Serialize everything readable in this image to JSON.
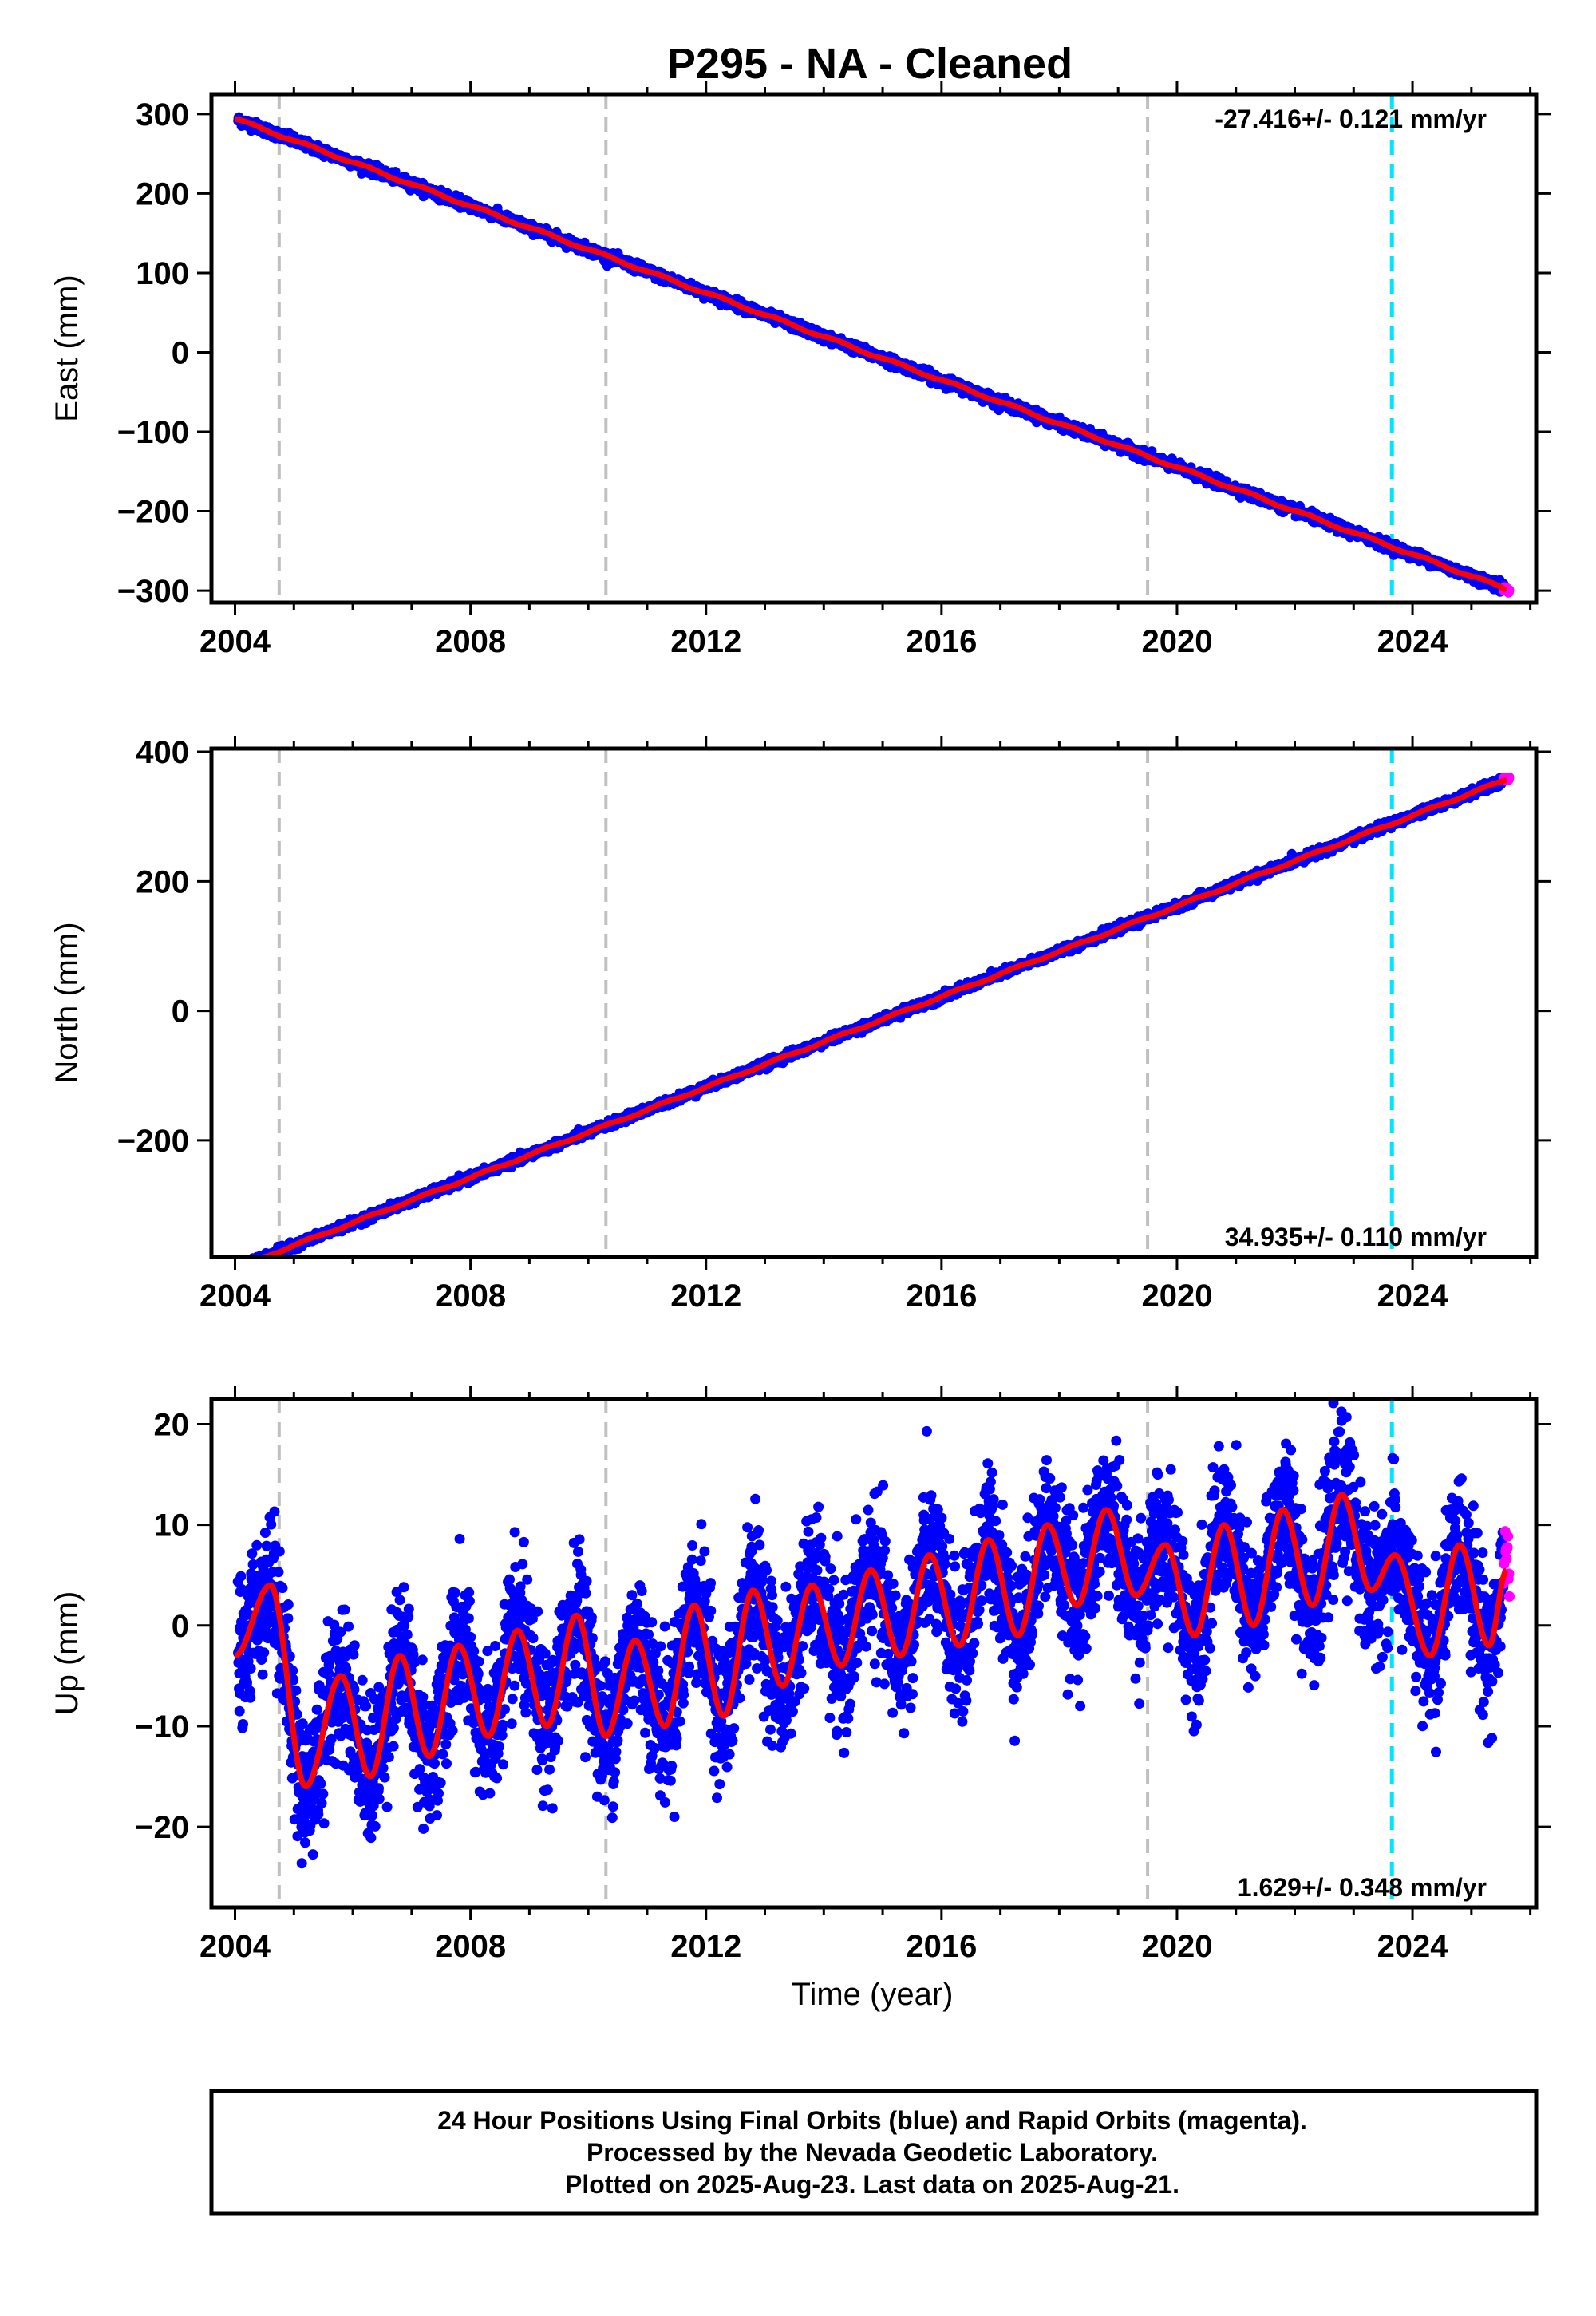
{
  "title": "P295  - NA - Cleaned",
  "colors": {
    "final_orbits": "#0000ff",
    "rapid_orbits": "#ff00ff",
    "model": "#ff0000",
    "event_line": "#c0c0c0",
    "latest_event_line": "#00e5ff"
  },
  "events": [
    2004.75,
    2010.3,
    2019.5
  ],
  "latest_event": 2023.65,
  "time_label": "Time (year)",
  "footer": {
    "line1": "24 Hour Positions Using Final Orbits (blue) and Rapid Orbits (magenta).",
    "line2": "Processed by the Nevada Geodetic Laboratory.",
    "line3": "Plotted on 2025-Aug-23. Last data on 2025-Aug-21."
  },
  "chart_data": [
    {
      "type": "scatter",
      "component": "east",
      "ylabel": "East (mm)",
      "xlim": [
        2003.6,
        2026.1
      ],
      "ylim": [
        -315,
        325
      ],
      "xticks": [
        2004,
        2008,
        2012,
        2016,
        2020,
        2024
      ],
      "yticks": [
        -300,
        -200,
        -100,
        0,
        100,
        200,
        300
      ],
      "rate_text": "-27.416+/- 0.121 mm/yr",
      "rate_position": "top-right",
      "series": [
        {
          "name": "Final Orbits (blue)",
          "x_range": [
            2004.05,
            2025.55
          ],
          "trend": {
            "slope": -27.416,
            "value_at_2016": -35
          },
          "noise_mm": 3
        },
        {
          "name": "Rapid Orbits (magenta)",
          "x_range": [
            2025.55,
            2025.65
          ],
          "trend": {
            "slope": -27.416,
            "value_at_2016": -35
          },
          "noise_mm": 2
        }
      ],
      "model": {
        "slope": -27.416,
        "value_at_2016": -35
      }
    },
    {
      "type": "scatter",
      "component": "north",
      "ylabel": "North (mm)",
      "xlim": [
        2003.6,
        2026.1
      ],
      "ylim": [
        -380,
        405
      ],
      "xticks": [
        2004,
        2008,
        2012,
        2016,
        2020,
        2024
      ],
      "yticks": [
        -200,
        0,
        200,
        400
      ],
      "rate_text": "34.935+/- 0.110 mm/yr",
      "rate_position": "bottom-right",
      "series": [
        {
          "name": "Final Orbits (blue)",
          "x_range": [
            2004.05,
            2025.55
          ],
          "trend": {
            "slope": 34.935,
            "value_at_2016": 22
          },
          "noise_mm": 3
        },
        {
          "name": "Rapid Orbits (magenta)",
          "x_range": [
            2025.55,
            2025.65
          ],
          "trend": {
            "slope": 34.935,
            "value_at_2016": 22
          },
          "noise_mm": 2
        }
      ],
      "model": {
        "slope": 34.935,
        "value_at_2016": 22
      }
    },
    {
      "type": "scatter",
      "component": "up",
      "ylabel": "Up (mm)",
      "xlabel": "Time (year)",
      "xlim": [
        2003.6,
        2026.1
      ],
      "ylim": [
        -28,
        22.5
      ],
      "xticks": [
        2004,
        2008,
        2012,
        2016,
        2020,
        2024
      ],
      "yticks": [
        -20,
        -10,
        0,
        10,
        20
      ],
      "rate_text": "1.629+/- 0.348 mm/yr",
      "rate_position": "bottom-right",
      "series": [
        {
          "name": "Final Orbits (blue)",
          "x_range": [
            2004.05,
            2025.55
          ],
          "noise_mm": 3.5
        },
        {
          "name": "Rapid Orbits (magenta)",
          "x_range": [
            2025.55,
            2025.65
          ],
          "noise_mm": 3
        }
      ],
      "model_curve": {
        "x": [
          2004.0,
          2004.6,
          2005.2,
          2005.8,
          2006.3,
          2006.8,
          2007.3,
          2007.8,
          2008.3,
          2008.8,
          2009.3,
          2009.8,
          2010.3,
          2010.8,
          2011.3,
          2011.8,
          2012.3,
          2012.8,
          2013.3,
          2013.8,
          2014.3,
          2014.8,
          2015.3,
          2015.8,
          2016.3,
          2016.8,
          2017.3,
          2017.8,
          2018.3,
          2018.8,
          2019.3,
          2019.8,
          2020.3,
          2020.8,
          2021.3,
          2021.8,
          2022.3,
          2022.8,
          2023.3,
          2023.7,
          2024.3,
          2024.8,
          2025.3,
          2025.6
        ],
        "y": [
          -3,
          4,
          -16,
          -5,
          -15,
          -3,
          -13,
          -2,
          -11,
          -0.5,
          -10,
          1,
          -11,
          -1.5,
          -10,
          2,
          -9,
          3.5,
          -6,
          4,
          -4,
          5.5,
          -3,
          7,
          -2,
          8.5,
          -1,
          10,
          2,
          11.5,
          3,
          8,
          -1,
          10,
          0,
          11.5,
          2,
          13,
          3.5,
          7,
          -3,
          8,
          -2,
          5.5
        ]
      }
    }
  ]
}
